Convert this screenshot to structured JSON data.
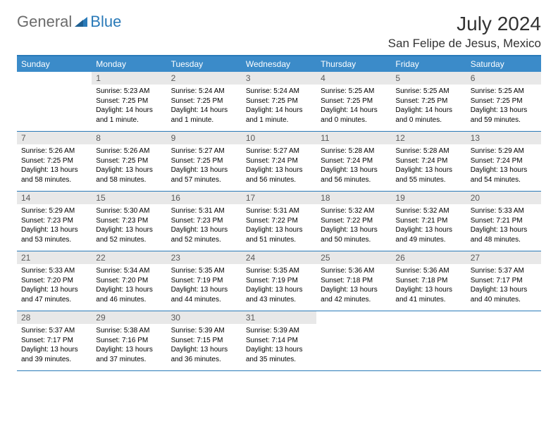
{
  "logo": {
    "general": "General",
    "blue": "Blue"
  },
  "title": "July 2024",
  "location": "San Felipe de Jesus, Mexico",
  "colors": {
    "header_bar": "#3b8bc9",
    "header_border": "#2a7ab8",
    "daynum_bg": "#e8e8e8",
    "text": "#000000"
  },
  "days_of_week": [
    "Sunday",
    "Monday",
    "Tuesday",
    "Wednesday",
    "Thursday",
    "Friday",
    "Saturday"
  ],
  "weeks": [
    [
      {
        "n": "",
        "sr": "",
        "ss": "",
        "dl": ""
      },
      {
        "n": "1",
        "sr": "Sunrise: 5:23 AM",
        "ss": "Sunset: 7:25 PM",
        "dl": "Daylight: 14 hours and 1 minute."
      },
      {
        "n": "2",
        "sr": "Sunrise: 5:24 AM",
        "ss": "Sunset: 7:25 PM",
        "dl": "Daylight: 14 hours and 1 minute."
      },
      {
        "n": "3",
        "sr": "Sunrise: 5:24 AM",
        "ss": "Sunset: 7:25 PM",
        "dl": "Daylight: 14 hours and 1 minute."
      },
      {
        "n": "4",
        "sr": "Sunrise: 5:25 AM",
        "ss": "Sunset: 7:25 PM",
        "dl": "Daylight: 14 hours and 0 minutes."
      },
      {
        "n": "5",
        "sr": "Sunrise: 5:25 AM",
        "ss": "Sunset: 7:25 PM",
        "dl": "Daylight: 14 hours and 0 minutes."
      },
      {
        "n": "6",
        "sr": "Sunrise: 5:25 AM",
        "ss": "Sunset: 7:25 PM",
        "dl": "Daylight: 13 hours and 59 minutes."
      }
    ],
    [
      {
        "n": "7",
        "sr": "Sunrise: 5:26 AM",
        "ss": "Sunset: 7:25 PM",
        "dl": "Daylight: 13 hours and 58 minutes."
      },
      {
        "n": "8",
        "sr": "Sunrise: 5:26 AM",
        "ss": "Sunset: 7:25 PM",
        "dl": "Daylight: 13 hours and 58 minutes."
      },
      {
        "n": "9",
        "sr": "Sunrise: 5:27 AM",
        "ss": "Sunset: 7:25 PM",
        "dl": "Daylight: 13 hours and 57 minutes."
      },
      {
        "n": "10",
        "sr": "Sunrise: 5:27 AM",
        "ss": "Sunset: 7:24 PM",
        "dl": "Daylight: 13 hours and 56 minutes."
      },
      {
        "n": "11",
        "sr": "Sunrise: 5:28 AM",
        "ss": "Sunset: 7:24 PM",
        "dl": "Daylight: 13 hours and 56 minutes."
      },
      {
        "n": "12",
        "sr": "Sunrise: 5:28 AM",
        "ss": "Sunset: 7:24 PM",
        "dl": "Daylight: 13 hours and 55 minutes."
      },
      {
        "n": "13",
        "sr": "Sunrise: 5:29 AM",
        "ss": "Sunset: 7:24 PM",
        "dl": "Daylight: 13 hours and 54 minutes."
      }
    ],
    [
      {
        "n": "14",
        "sr": "Sunrise: 5:29 AM",
        "ss": "Sunset: 7:23 PM",
        "dl": "Daylight: 13 hours and 53 minutes."
      },
      {
        "n": "15",
        "sr": "Sunrise: 5:30 AM",
        "ss": "Sunset: 7:23 PM",
        "dl": "Daylight: 13 hours and 52 minutes."
      },
      {
        "n": "16",
        "sr": "Sunrise: 5:31 AM",
        "ss": "Sunset: 7:23 PM",
        "dl": "Daylight: 13 hours and 52 minutes."
      },
      {
        "n": "17",
        "sr": "Sunrise: 5:31 AM",
        "ss": "Sunset: 7:22 PM",
        "dl": "Daylight: 13 hours and 51 minutes."
      },
      {
        "n": "18",
        "sr": "Sunrise: 5:32 AM",
        "ss": "Sunset: 7:22 PM",
        "dl": "Daylight: 13 hours and 50 minutes."
      },
      {
        "n": "19",
        "sr": "Sunrise: 5:32 AM",
        "ss": "Sunset: 7:21 PM",
        "dl": "Daylight: 13 hours and 49 minutes."
      },
      {
        "n": "20",
        "sr": "Sunrise: 5:33 AM",
        "ss": "Sunset: 7:21 PM",
        "dl": "Daylight: 13 hours and 48 minutes."
      }
    ],
    [
      {
        "n": "21",
        "sr": "Sunrise: 5:33 AM",
        "ss": "Sunset: 7:20 PM",
        "dl": "Daylight: 13 hours and 47 minutes."
      },
      {
        "n": "22",
        "sr": "Sunrise: 5:34 AM",
        "ss": "Sunset: 7:20 PM",
        "dl": "Daylight: 13 hours and 46 minutes."
      },
      {
        "n": "23",
        "sr": "Sunrise: 5:35 AM",
        "ss": "Sunset: 7:19 PM",
        "dl": "Daylight: 13 hours and 44 minutes."
      },
      {
        "n": "24",
        "sr": "Sunrise: 5:35 AM",
        "ss": "Sunset: 7:19 PM",
        "dl": "Daylight: 13 hours and 43 minutes."
      },
      {
        "n": "25",
        "sr": "Sunrise: 5:36 AM",
        "ss": "Sunset: 7:18 PM",
        "dl": "Daylight: 13 hours and 42 minutes."
      },
      {
        "n": "26",
        "sr": "Sunrise: 5:36 AM",
        "ss": "Sunset: 7:18 PM",
        "dl": "Daylight: 13 hours and 41 minutes."
      },
      {
        "n": "27",
        "sr": "Sunrise: 5:37 AM",
        "ss": "Sunset: 7:17 PM",
        "dl": "Daylight: 13 hours and 40 minutes."
      }
    ],
    [
      {
        "n": "28",
        "sr": "Sunrise: 5:37 AM",
        "ss": "Sunset: 7:17 PM",
        "dl": "Daylight: 13 hours and 39 minutes."
      },
      {
        "n": "29",
        "sr": "Sunrise: 5:38 AM",
        "ss": "Sunset: 7:16 PM",
        "dl": "Daylight: 13 hours and 37 minutes."
      },
      {
        "n": "30",
        "sr": "Sunrise: 5:39 AM",
        "ss": "Sunset: 7:15 PM",
        "dl": "Daylight: 13 hours and 36 minutes."
      },
      {
        "n": "31",
        "sr": "Sunrise: 5:39 AM",
        "ss": "Sunset: 7:14 PM",
        "dl": "Daylight: 13 hours and 35 minutes."
      },
      {
        "n": "",
        "sr": "",
        "ss": "",
        "dl": ""
      },
      {
        "n": "",
        "sr": "",
        "ss": "",
        "dl": ""
      },
      {
        "n": "",
        "sr": "",
        "ss": "",
        "dl": ""
      }
    ]
  ]
}
